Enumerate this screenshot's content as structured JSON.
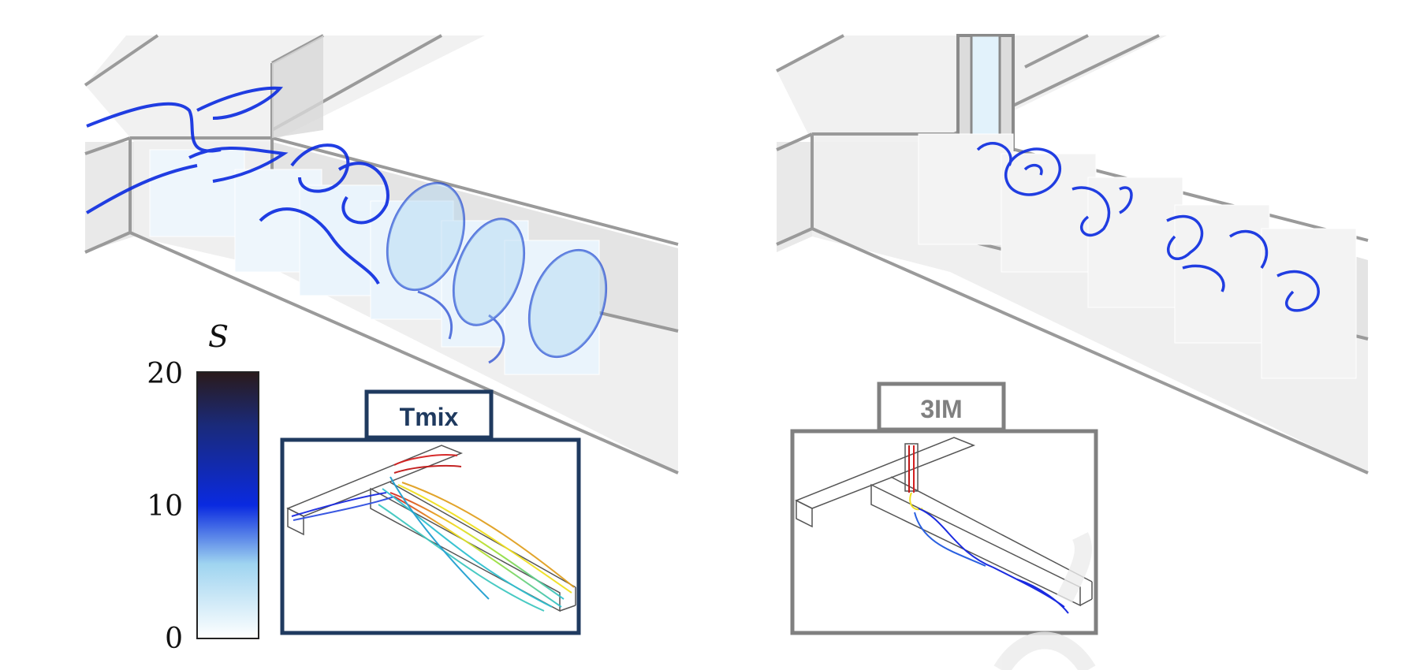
{
  "colorbar": {
    "title": "S",
    "ticks": [
      "20",
      "10",
      "0"
    ],
    "tick_values": [
      20,
      10,
      0
    ],
    "range": [
      0,
      20
    ],
    "colors": [
      "#2a1a1a",
      "#1a2a7a",
      "#0a2ae0",
      "#9fd4f0",
      "#ffffff"
    ]
  },
  "insets": {
    "left": {
      "label": "Tmix",
      "frame_color": "#1f3a5f"
    },
    "right": {
      "label": "3IM",
      "frame_color": "#808080"
    }
  },
  "watermark": {
    "color": "#e8e8e8"
  }
}
